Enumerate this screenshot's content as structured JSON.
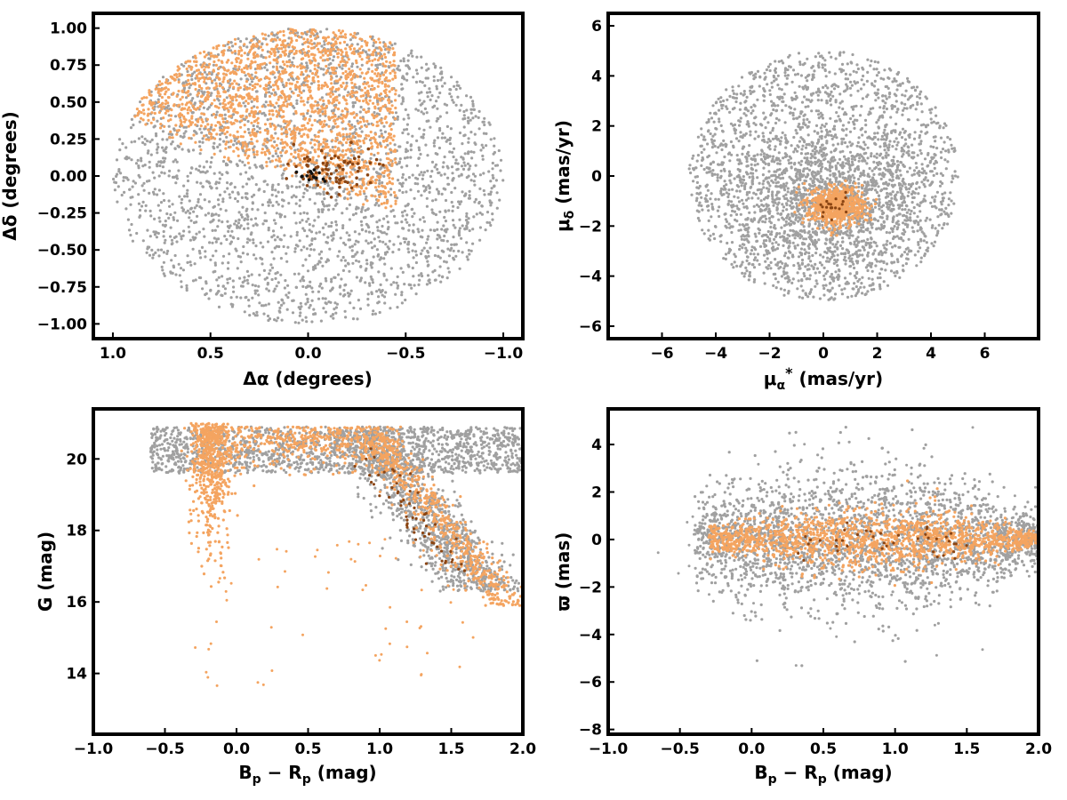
{
  "colors": {
    "field": "#a0a0a0",
    "members": "#f4a460",
    "dense": "#8b4513",
    "core": "#111111"
  },
  "chart_data": [
    {
      "id": "sky",
      "type": "scatter",
      "xlabel": "Δα (degrees)",
      "ylabel": "Δδ (degrees)",
      "xlim": [
        1.1,
        -1.1
      ],
      "ylim": [
        -1.1,
        1.1
      ],
      "xticks": [
        1.0,
        0.5,
        0.0,
        -0.5,
        -1.0
      ],
      "xtick_labels": [
        "1.0",
        "0.5",
        "0.0",
        "−0.5",
        "−1.0"
      ],
      "yticks": [
        -1.0,
        -0.75,
        -0.5,
        -0.25,
        0.0,
        0.25,
        0.5,
        0.75,
        1.0
      ],
      "ytick_labels": [
        "−1.00",
        "−0.75",
        "−0.50",
        "−0.25",
        "0.00",
        "0.25",
        "0.50",
        "0.75",
        "1.00"
      ],
      "grid": false,
      "series": [
        {
          "color_key": "field",
          "distribution": "uniform disk",
          "center": [
            0,
            0
          ],
          "radius": 1.0,
          "count": 2600
        },
        {
          "color_key": "members",
          "distribution": "northeast half of disk",
          "center": [
            0.3,
            0.5
          ],
          "spread": [
            0.45,
            0.35
          ],
          "count": 1800
        },
        {
          "color_key": "dense",
          "distribution": "clumps",
          "center": [
            -0.15,
            0.0
          ],
          "spread": [
            0.15,
            0.1
          ],
          "count": 80
        },
        {
          "color_key": "core",
          "distribution": "clump",
          "center": [
            -0.02,
            0.0
          ],
          "spread": [
            0.05,
            0.03
          ],
          "count": 14
        }
      ]
    },
    {
      "id": "pm",
      "type": "scatter",
      "xlabel": "μ*α (mas/yr)",
      "ylabel": "μδ (mas/yr)",
      "xlim": [
        -8,
        8
      ],
      "ylim": [
        -6.5,
        6.5
      ],
      "xticks": [
        -6,
        -4,
        -2,
        0,
        2,
        4,
        6
      ],
      "xtick_labels": [
        "−6",
        "−4",
        "−2",
        "0",
        "2",
        "4",
        "6"
      ],
      "yticks": [
        -6,
        -4,
        -2,
        0,
        2,
        4,
        6
      ],
      "ytick_labels": [
        "−6",
        "−4",
        "−2",
        "0",
        "2",
        "4",
        "6"
      ],
      "grid": false,
      "series": [
        {
          "color_key": "field",
          "distribution": "uniform disk",
          "center": [
            0,
            0
          ],
          "radius": 5.0,
          "count": 2000
        },
        {
          "color_key": "field",
          "distribution": "dense core",
          "center": [
            0.3,
            -1.0
          ],
          "spread": [
            1.7,
            1.3
          ],
          "count": 1200
        },
        {
          "color_key": "members",
          "distribution": "compact clump",
          "center": [
            0.5,
            -1.2
          ],
          "spread": [
            0.55,
            0.4
          ],
          "count": 700
        },
        {
          "color_key": "dense",
          "distribution": "clump",
          "center": [
            0.5,
            -1.3
          ],
          "spread": [
            0.25,
            0.2
          ],
          "count": 20
        }
      ]
    },
    {
      "id": "cmd",
      "type": "scatter",
      "xlabel": "Bp − Rp (mag)",
      "ylabel": "G (mag)",
      "xlim": [
        -1.0,
        2.0
      ],
      "ylim": [
        12.3,
        21.4
      ],
      "yinverted": false,
      "xticks": [
        -1.0,
        -0.5,
        0.0,
        0.5,
        1.0,
        1.5,
        2.0
      ],
      "xtick_labels": [
        "−1.0",
        "−0.5",
        "0.0",
        "0.5",
        "1.0",
        "1.5",
        "2.0"
      ],
      "yticks": [
        14,
        16,
        18,
        20
      ],
      "ytick_labels": [
        "14",
        "16",
        "18",
        "20"
      ],
      "grid": false,
      "series": [
        {
          "color_key": "field",
          "distribution": "faint band + red sequence",
          "count": 2600
        },
        {
          "color_key": "members",
          "distribution": "blue plume + red giant branch",
          "count": 1600
        },
        {
          "color_key": "dense",
          "distribution": "red sequence",
          "count": 60
        }
      ]
    },
    {
      "id": "parallax",
      "type": "scatter",
      "xlabel": "Bp − Rp (mag)",
      "ylabel": "ϖ (mas)",
      "xlim": [
        -1.0,
        2.0
      ],
      "ylim": [
        -8.2,
        5.5
      ],
      "xticks": [
        -1.0,
        -0.5,
        0.0,
        0.5,
        1.0,
        1.5,
        2.0
      ],
      "xtick_labels": [
        "−1.0",
        "−0.5",
        "0.0",
        "0.5",
        "1.0",
        "1.5",
        "2.0"
      ],
      "yticks": [
        -8,
        -6,
        -4,
        -2,
        0,
        2,
        4
      ],
      "ytick_labels": [
        "−8",
        "−6",
        "−4",
        "−2",
        "0",
        "2",
        "4"
      ],
      "grid": false,
      "series": [
        {
          "color_key": "field",
          "distribution": "spread around zero",
          "count": 2600
        },
        {
          "color_key": "members",
          "distribution": "tight band near zero",
          "count": 1500
        },
        {
          "color_key": "dense",
          "distribution": "band near zero",
          "count": 40
        }
      ]
    }
  ]
}
